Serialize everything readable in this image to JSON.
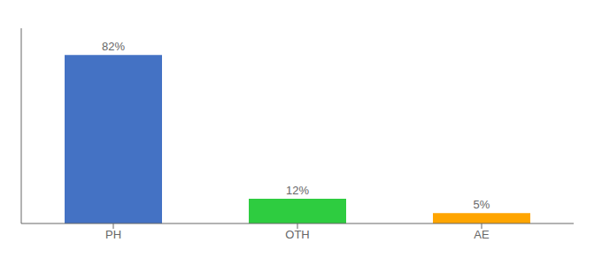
{
  "chart_data": {
    "type": "bar",
    "categories": [
      "PH",
      "OTH",
      "AE"
    ],
    "values": [
      82,
      12,
      5
    ],
    "value_labels": [
      "82%",
      "12%",
      "5%"
    ],
    "colors": [
      "#4472C4",
      "#2ECC40",
      "#FFA500"
    ],
    "ylim": [
      0,
      95
    ],
    "data_labels": true,
    "tick_labels": "x",
    "grid": false
  }
}
